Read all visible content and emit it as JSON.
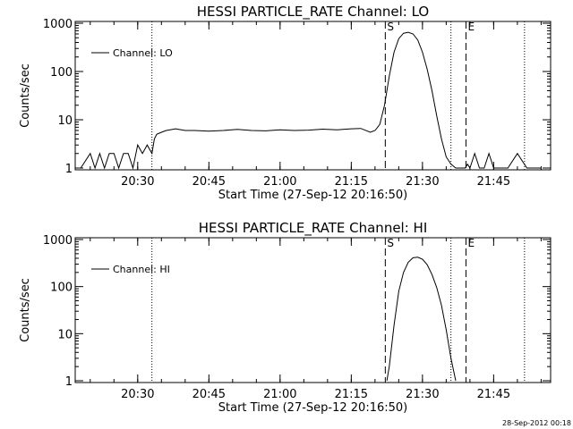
{
  "chart_data": [
    {
      "type": "line",
      "title": "HESSI PARTICLE_RATE Channel: LO",
      "xlabel": "Start Time (27-Sep-12 20:16:50)",
      "ylabel": "Counts/sec",
      "xlim": [
        "20:16:50",
        "21:57:00"
      ],
      "ylim": [
        1,
        1000
      ],
      "yscale": "log",
      "x_ticks": [
        "20:30",
        "20:45",
        "21:00",
        "21:15",
        "21:30",
        "21:45"
      ],
      "y_ticks": [
        "1",
        "10",
        "100",
        "1000"
      ],
      "legend": {
        "placement": "top-left",
        "entries": [
          "Channel: LO"
        ]
      },
      "event_markers": [
        {
          "label": "S",
          "time": "21:22:10",
          "style": "dashed"
        },
        {
          "label": "E",
          "time": "21:39:10",
          "style": "dashed"
        }
      ],
      "dotted_markers": [
        "20:33:00",
        "21:36:00",
        "21:51:30"
      ],
      "series": [
        {
          "name": "Channel: LO",
          "x": [
            "20:18:00",
            "20:20:00",
            "20:21:00",
            "20:22:00",
            "20:23:00",
            "20:24:00",
            "20:25:00",
            "20:26:00",
            "20:27:00",
            "20:28:00",
            "20:29:00",
            "20:30:00",
            "20:31:00",
            "20:32:00",
            "20:33:00",
            "20:33:30",
            "20:34:00",
            "20:35:00",
            "20:36:00",
            "20:38:00",
            "20:40:00",
            "20:42:00",
            "20:45:00",
            "20:48:00",
            "20:51:00",
            "20:54:00",
            "20:57:00",
            "21:00:00",
            "21:03:00",
            "21:06:00",
            "21:09:00",
            "21:12:00",
            "21:15:00",
            "21:17:00",
            "21:19:00",
            "21:20:00",
            "21:21:00",
            "21:22:00",
            "21:23:00",
            "21:24:00",
            "21:25:00",
            "21:26:00",
            "21:27:00",
            "21:28:00",
            "21:29:00",
            "21:30:00",
            "21:31:00",
            "21:32:00",
            "21:33:00",
            "21:34:00",
            "21:35:00",
            "21:36:00",
            "21:37:00",
            "21:38:00",
            "21:39:00",
            "21:39:30",
            "21:40:00",
            "21:41:00",
            "21:42:00",
            "21:43:00",
            "21:44:00",
            "21:45:00",
            "21:46:00",
            "21:47:00",
            "21:48:00",
            "21:50:00",
            "21:52:00",
            "21:55:00"
          ],
          "y": [
            1,
            2,
            1,
            2,
            1,
            2,
            2,
            1,
            2,
            2,
            1,
            3,
            2,
            3,
            2,
            4,
            5,
            5.5,
            6,
            6.5,
            6,
            6,
            5.8,
            6,
            6.3,
            6,
            5.9,
            6.2,
            6,
            6.1,
            6.4,
            6.2,
            6.5,
            6.6,
            5.5,
            6,
            8,
            20,
            80,
            250,
            480,
            620,
            650,
            600,
            450,
            250,
            110,
            40,
            12,
            4,
            1.7,
            1.2,
            1,
            1,
            1,
            1.2,
            1,
            2,
            1,
            1,
            2,
            1,
            1,
            1,
            1,
            2,
            1,
            1
          ]
        }
      ]
    },
    {
      "type": "line",
      "title": "HESSI PARTICLE_RATE Channel: HI",
      "xlabel": "Start Time (27-Sep-12 20:16:50)",
      "ylabel": "Counts/sec",
      "xlim": [
        "20:16:50",
        "21:57:00"
      ],
      "ylim": [
        1,
        1000
      ],
      "yscale": "log",
      "x_ticks": [
        "20:30",
        "20:45",
        "21:00",
        "21:15",
        "21:30",
        "21:45"
      ],
      "y_ticks": [
        "1",
        "10",
        "100",
        "1000"
      ],
      "legend": {
        "placement": "top-left",
        "entries": [
          "Channel: HI"
        ]
      },
      "event_markers": [
        {
          "label": "S",
          "time": "21:22:10",
          "style": "dashed"
        },
        {
          "label": "E",
          "time": "21:39:10",
          "style": "dashed"
        }
      ],
      "dotted_markers": [
        "20:33:00",
        "21:36:00",
        "21:51:30"
      ],
      "series": [
        {
          "name": "Channel: HI",
          "x": [
            "21:22:30",
            "21:23:00",
            "21:24:00",
            "21:25:00",
            "21:26:00",
            "21:27:00",
            "21:28:00",
            "21:29:00",
            "21:30:00",
            "21:31:00",
            "21:32:00",
            "21:33:00",
            "21:34:00",
            "21:35:00",
            "21:36:00",
            "21:37:00"
          ],
          "y": [
            1,
            2,
            15,
            80,
            200,
            330,
            410,
            420,
            380,
            290,
            180,
            95,
            40,
            12,
            3,
            1
          ]
        }
      ]
    }
  ],
  "timestamp": "28-Sep-2012 00:18"
}
